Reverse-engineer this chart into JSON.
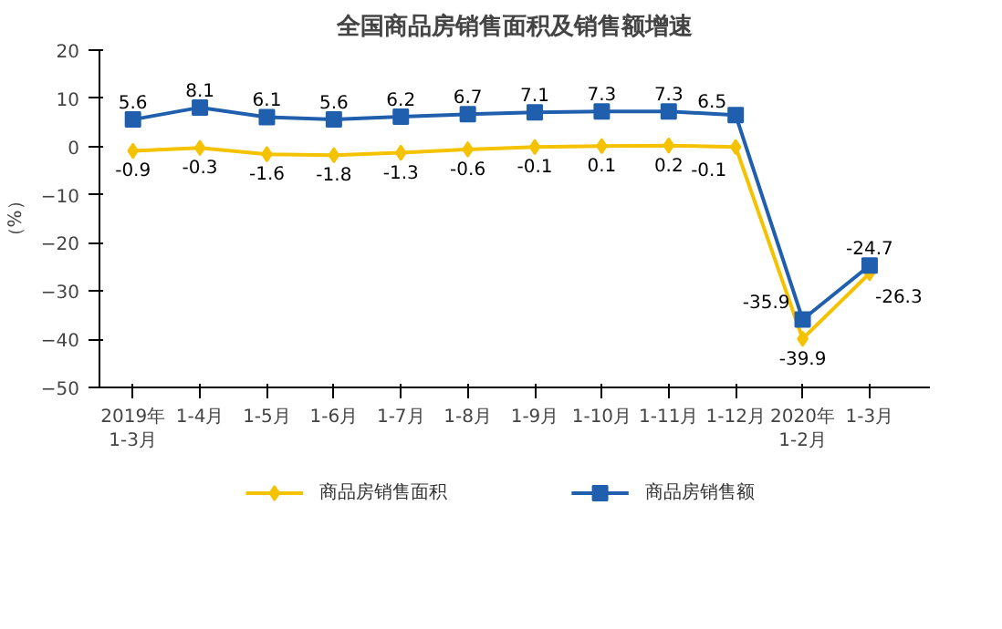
{
  "chart_data": {
    "type": "line",
    "title": "全国商品房销售面积及销售额增速",
    "ylabel": "（%）",
    "categories": [
      "2019年\n1-3月",
      "1-4月",
      "1-5月",
      "1-6月",
      "1-7月",
      "1-8月",
      "1-9月",
      "1-10月",
      "1-11月",
      "1-12月",
      "2020年\n1-2月",
      "1-3月"
    ],
    "series": [
      {
        "name": "商品房销售面积",
        "color": "#f5c200",
        "values": [
          -0.9,
          -0.3,
          -1.6,
          -1.8,
          -1.3,
          -0.6,
          -0.1,
          0.1,
          0.2,
          -0.1,
          -39.9,
          -26.3
        ],
        "marker": "diamond"
      },
      {
        "name": "商品房销售额",
        "color": "#1f5fad",
        "values": [
          5.6,
          8.1,
          6.1,
          5.6,
          6.2,
          6.7,
          7.1,
          7.3,
          7.3,
          6.5,
          -35.9,
          -24.7
        ],
        "marker": "square"
      }
    ],
    "ylim": [
      -50,
      20
    ],
    "yticks": [
      -50,
      -40,
      -30,
      -20,
      -10,
      0,
      10,
      20
    ],
    "grid": false,
    "legend": "bottom",
    "data_labels": true
  }
}
